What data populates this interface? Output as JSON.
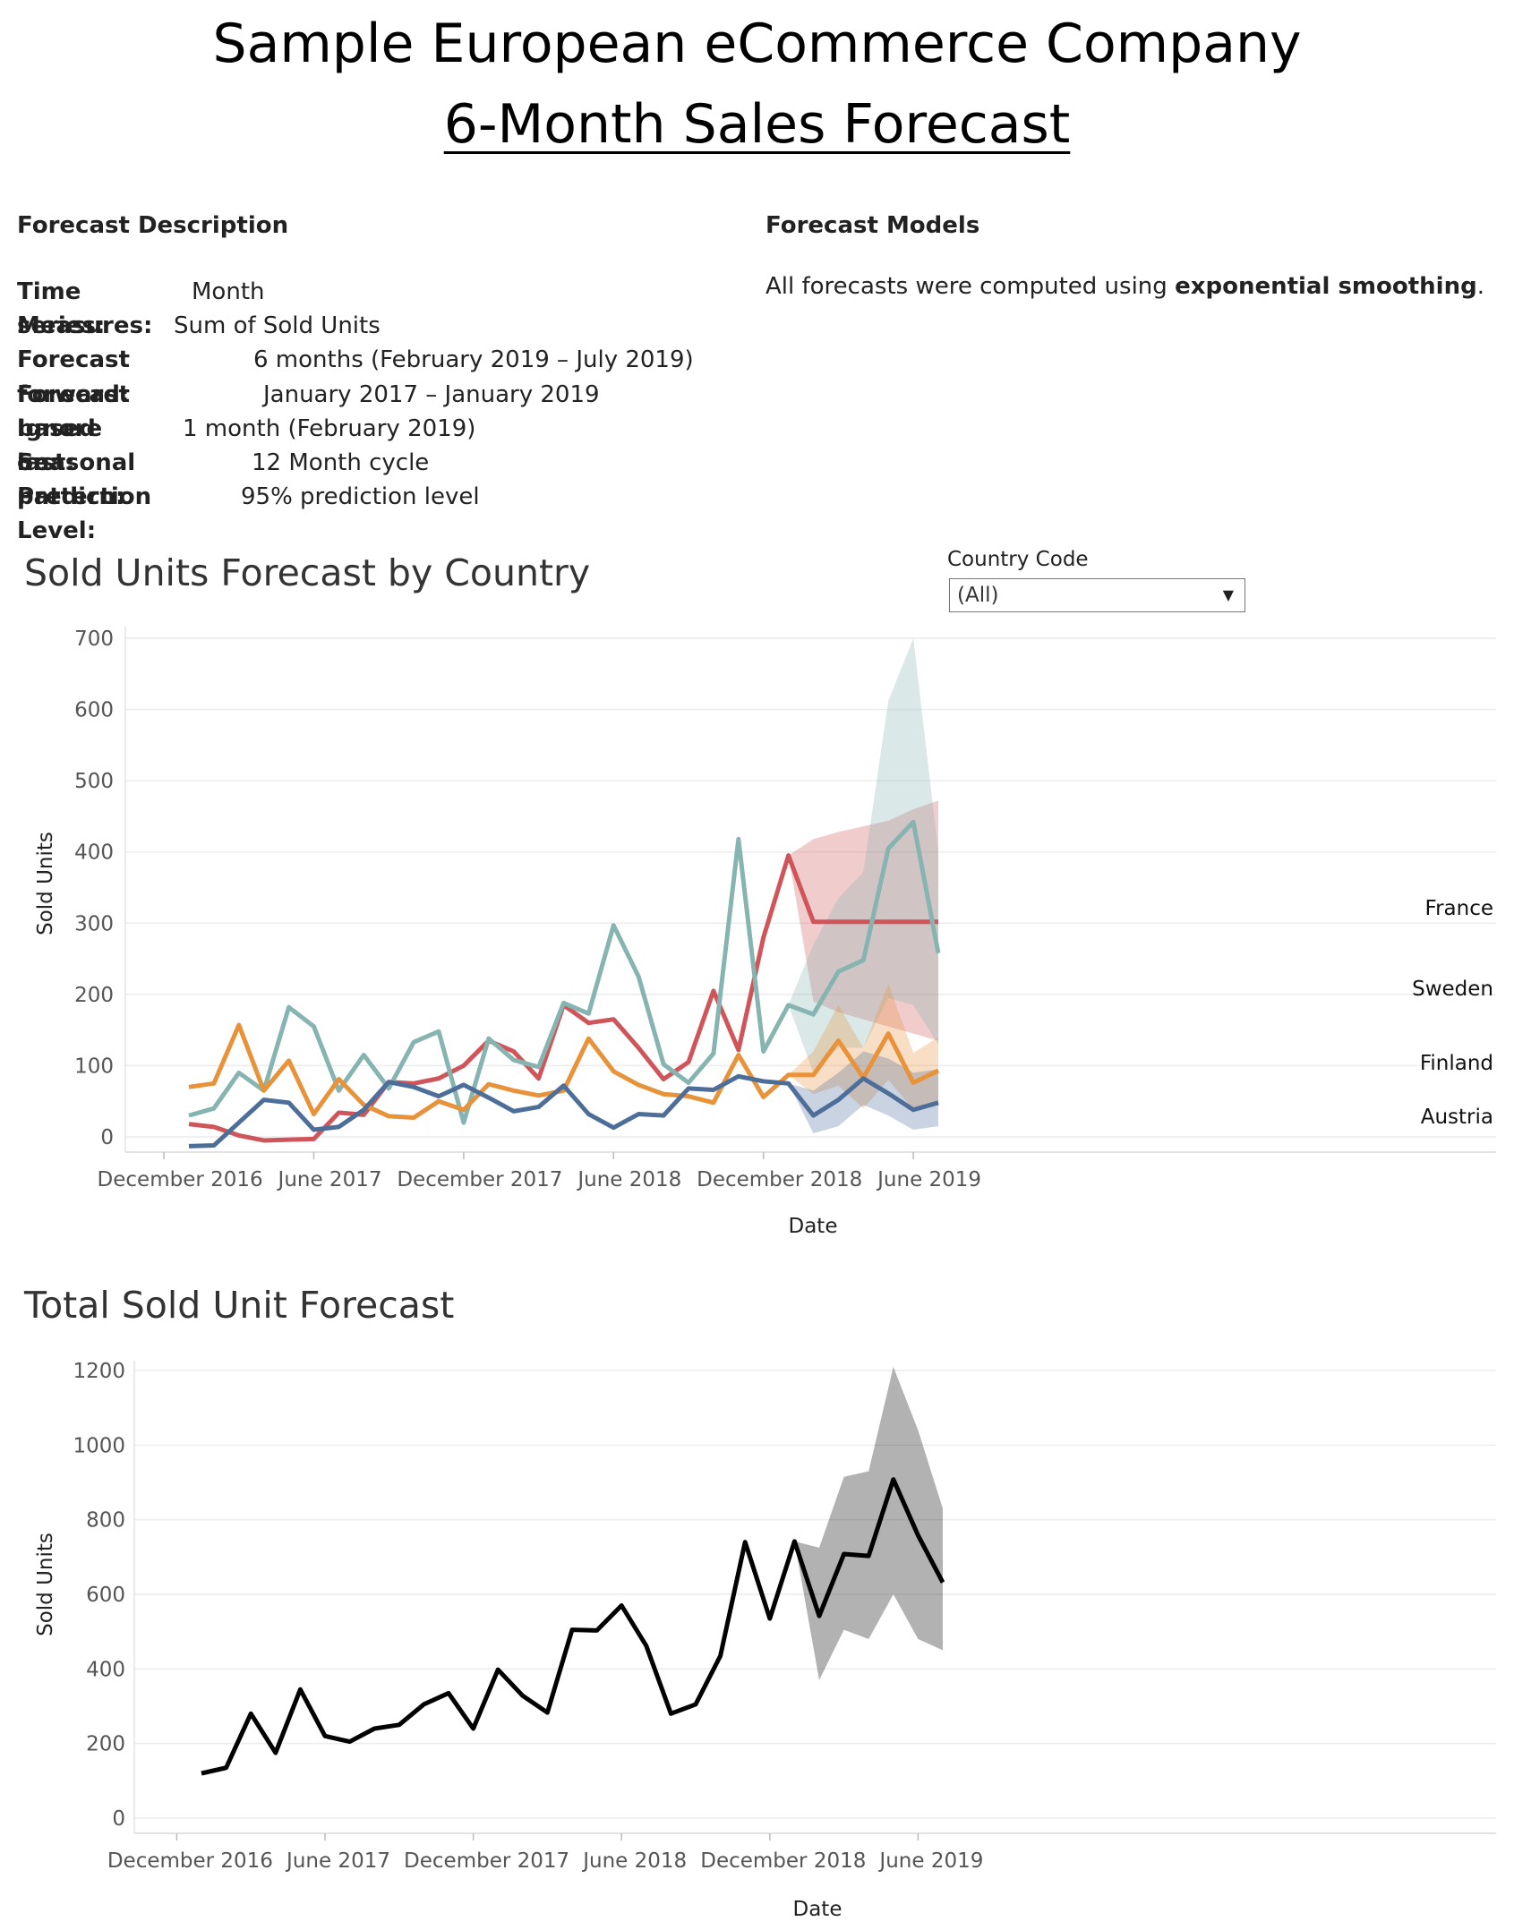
{
  "header": {
    "title": "Sample European eCommerce Company",
    "subtitle": "6-Month Sales Forecast"
  },
  "description": {
    "heading": "Forecast Description",
    "rows": [
      {
        "label": "Time series:",
        "value": "Month"
      },
      {
        "label": "Measures:",
        "value": "Sum of Sold Units"
      },
      {
        "label": "Forecast forward:",
        "value": "6 months (February 2019 – July 2019)"
      },
      {
        "label": "Forecast based on:",
        "value": "January 2017 – January 2019"
      },
      {
        "label": "Ignore last:",
        "value": "1 month (February 2019)"
      },
      {
        "label": "Seasonal pattern:",
        "value": "12 Month cycle"
      },
      {
        "label": "Prediction Level:",
        "value": "95% prediction level"
      }
    ]
  },
  "models": {
    "heading": "Forecast Models",
    "text_before": "All forecasts were computed using ",
    "text_bold": "exponential smoothing",
    "text_after": "."
  },
  "filter": {
    "label": "Country Code",
    "value": "(All)"
  },
  "chart_data": [
    {
      "type": "line",
      "title": "Sold Units Forecast by Country",
      "xlabel": "Date",
      "ylabel": "Sold Units",
      "ylim": [
        -15,
        710
      ],
      "yticks": [
        0,
        100,
        200,
        300,
        400,
        500,
        600,
        700
      ],
      "x_tick_labels": [
        "December 2016",
        "June 2017",
        "December 2017",
        "June 2018",
        "December 2018",
        "June 2019"
      ],
      "x": [
        "2017-01",
        "2017-02",
        "2017-03",
        "2017-04",
        "2017-05",
        "2017-06",
        "2017-07",
        "2017-08",
        "2017-09",
        "2017-10",
        "2017-11",
        "2017-12",
        "2018-01",
        "2018-02",
        "2018-03",
        "2018-04",
        "2018-05",
        "2018-06",
        "2018-07",
        "2018-08",
        "2018-09",
        "2018-10",
        "2018-11",
        "2018-12",
        "2019-01",
        "2019-02",
        "2019-03",
        "2019-04",
        "2019-05",
        "2019-06",
        "2019-07"
      ],
      "legend": "labels at line ends (right)",
      "grid": true,
      "series": [
        {
          "name": "France",
          "color": "#d0555a",
          "values": [
            18,
            14,
            2,
            -5,
            -4,
            -3,
            34,
            31,
            77,
            75,
            82,
            100,
            135,
            120,
            82,
            185,
            160,
            165,
            125,
            81,
            105,
            205,
            122,
            280,
            395,
            302,
            302,
            302,
            302,
            302,
            302
          ],
          "band": {
            "start": "2019-01",
            "upper": [
              395,
              418,
              428,
              436,
              444,
              460,
              472
            ],
            "lower": [
              395,
              190,
              175,
              165,
              155,
              145,
              135
            ]
          }
        },
        {
          "name": "Sweden",
          "color": "#86b4b1",
          "values": [
            30,
            40,
            90,
            65,
            182,
            155,
            65,
            115,
            68,
            133,
            148,
            20,
            138,
            108,
            98,
            188,
            173,
            297,
            225,
            102,
            76,
            117,
            418,
            120,
            185,
            172,
            232,
            248,
            405,
            442,
            258
          ],
          "band": {
            "start": "2019-01",
            "upper": [
              185,
              270,
              335,
              372,
              612,
              700,
              400
            ],
            "lower": [
              185,
              90,
              125,
              125,
              195,
              185,
              130
            ]
          }
        },
        {
          "name": "Finland",
          "color": "#e8923a",
          "values": [
            70,
            75,
            157,
            65,
            107,
            32,
            81,
            45,
            29,
            27,
            50,
            38,
            74,
            65,
            58,
            65,
            138,
            92,
            73,
            60,
            57,
            48,
            115,
            56,
            87,
            87,
            135,
            83,
            145,
            76,
            93
          ],
          "band": {
            "start": "2019-01",
            "upper": [
              87,
              120,
              185,
              125,
              215,
              118,
              140
            ],
            "lower": [
              87,
              60,
              72,
              40,
              80,
              38,
              50
            ]
          }
        },
        {
          "name": "Austria",
          "color": "#4e6e9a",
          "values": [
            -13,
            -12,
            20,
            52,
            48,
            10,
            14,
            38,
            77,
            70,
            57,
            73,
            55,
            36,
            42,
            72,
            32,
            13,
            32,
            30,
            68,
            66,
            85,
            78,
            75,
            30,
            52,
            82,
            61,
            38,
            48
          ],
          "band": {
            "start": "2019-01",
            "upper": [
              75,
              65,
              90,
              120,
              110,
              90,
              95
            ],
            "lower": [
              75,
              5,
              15,
              45,
              30,
              10,
              15
            ]
          }
        }
      ]
    },
    {
      "type": "line",
      "title": "Total Sold Unit Forecast",
      "xlabel": "Date",
      "ylabel": "Sold Units",
      "ylim": [
        -30,
        1250
      ],
      "yticks": [
        0,
        200,
        400,
        600,
        800,
        1000,
        1200
      ],
      "x_tick_labels": [
        "December 2016",
        "June 2017",
        "December 2017",
        "June 2018",
        "December 2018",
        "June 2019"
      ],
      "x": [
        "2017-01",
        "2017-02",
        "2017-03",
        "2017-04",
        "2017-05",
        "2017-06",
        "2017-07",
        "2017-08",
        "2017-09",
        "2017-10",
        "2017-11",
        "2017-12",
        "2018-01",
        "2018-02",
        "2018-03",
        "2018-04",
        "2018-05",
        "2018-06",
        "2018-07",
        "2018-08",
        "2018-09",
        "2018-10",
        "2018-11",
        "2018-12",
        "2019-01",
        "2019-02",
        "2019-03",
        "2019-04",
        "2019-05",
        "2019-06",
        "2019-07"
      ],
      "grid": true,
      "series": [
        {
          "color": "#000000",
          "values": [
            120,
            135,
            280,
            175,
            345,
            220,
            205,
            240,
            250,
            305,
            335,
            240,
            398,
            328,
            283,
            505,
            503,
            570,
            462,
            280,
            305,
            435,
            740,
            535,
            742,
            542,
            708,
            703,
            908,
            758,
            632
          ],
          "band": {
            "start": "2019-01",
            "upper": [
              742,
              725,
              915,
              930,
              1210,
              1040,
              830
            ],
            "lower": [
              742,
              370,
              505,
              480,
              600,
              480,
              450
            ]
          }
        }
      ]
    }
  ]
}
